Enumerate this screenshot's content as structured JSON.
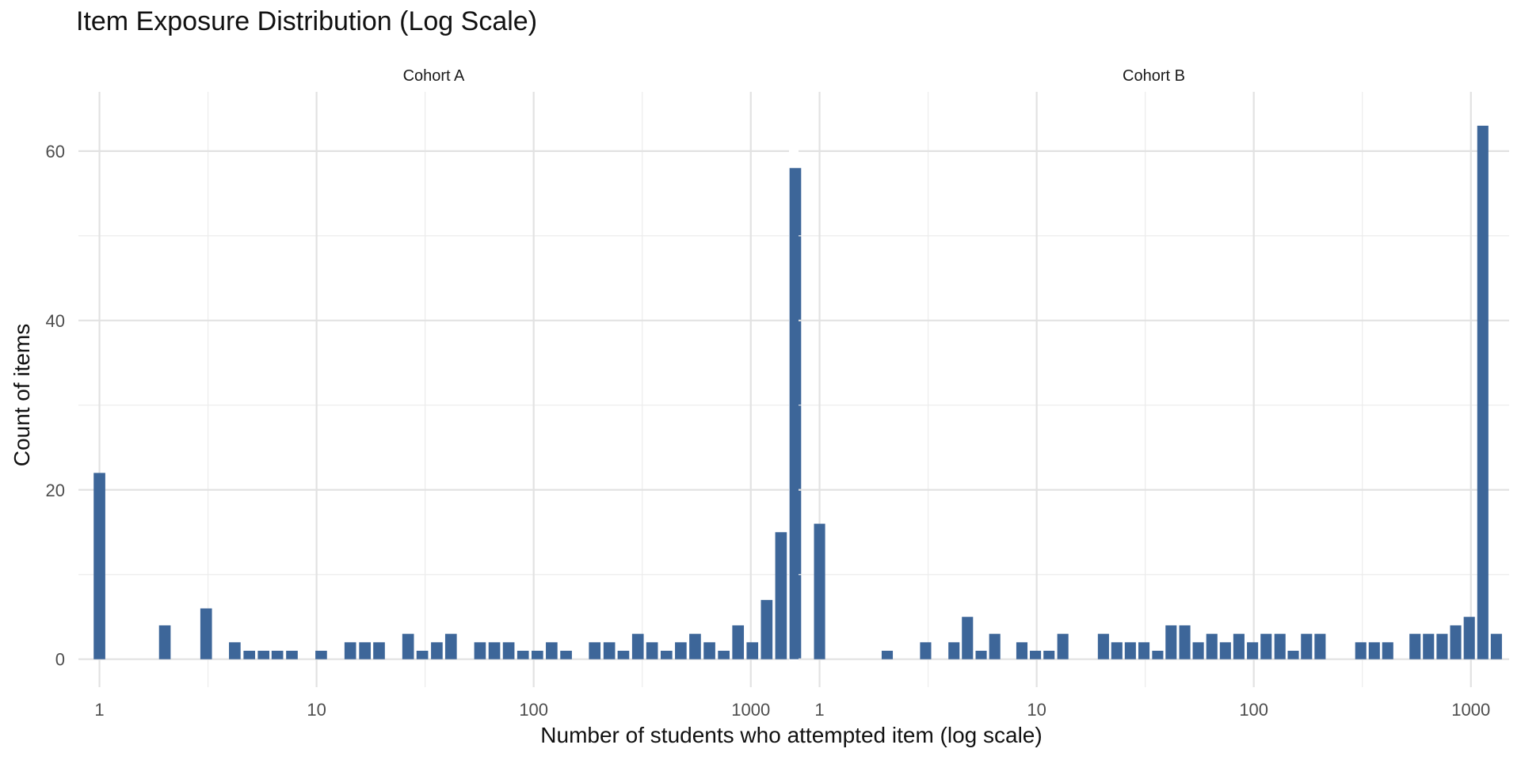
{
  "chart_data": {
    "type": "bar",
    "title": "Item Exposure Distribution (Log Scale)",
    "xlabel": "Number of students who attempted item (log scale)",
    "ylabel": "Count of items",
    "x_scale": "log10",
    "xlim": [
      0.8,
      1500
    ],
    "ylim": [
      -3.3,
      67
    ],
    "x_ticks": [
      1,
      10,
      100,
      1000
    ],
    "x_tick_labels": [
      "1",
      "10",
      "100",
      "1000"
    ],
    "y_ticks": [
      0,
      20,
      40,
      60
    ],
    "y_tick_labels": [
      "0",
      "20",
      "40",
      "60"
    ],
    "grid": true,
    "bar_color": "#3d6699",
    "facets": [
      {
        "name": "Cohort A",
        "bins": [
          {
            "x": 1,
            "count": 22
          },
          {
            "x": 2,
            "count": 4
          },
          {
            "x": 3.1,
            "count": 6
          },
          {
            "x": 4.2,
            "count": 2
          },
          {
            "x": 4.9,
            "count": 1
          },
          {
            "x": 5.7,
            "count": 1
          },
          {
            "x": 6.6,
            "count": 1
          },
          {
            "x": 7.7,
            "count": 1
          },
          {
            "x": 10.5,
            "count": 1
          },
          {
            "x": 14.3,
            "count": 2
          },
          {
            "x": 16.7,
            "count": 2
          },
          {
            "x": 19.4,
            "count": 2
          },
          {
            "x": 26.4,
            "count": 3
          },
          {
            "x": 30.7,
            "count": 1
          },
          {
            "x": 35.8,
            "count": 2
          },
          {
            "x": 41.6,
            "count": 3
          },
          {
            "x": 56.6,
            "count": 2
          },
          {
            "x": 65.9,
            "count": 2
          },
          {
            "x": 76.7,
            "count": 2
          },
          {
            "x": 89.3,
            "count": 1
          },
          {
            "x": 104,
            "count": 1
          },
          {
            "x": 121,
            "count": 2
          },
          {
            "x": 141,
            "count": 1
          },
          {
            "x": 191,
            "count": 2
          },
          {
            "x": 223,
            "count": 2
          },
          {
            "x": 259,
            "count": 1
          },
          {
            "x": 302,
            "count": 3
          },
          {
            "x": 351,
            "count": 2
          },
          {
            "x": 409,
            "count": 1
          },
          {
            "x": 476,
            "count": 2
          },
          {
            "x": 554,
            "count": 3
          },
          {
            "x": 645,
            "count": 2
          },
          {
            "x": 751,
            "count": 1
          },
          {
            "x": 874,
            "count": 4
          },
          {
            "x": 1017,
            "count": 2
          },
          {
            "x": 1184,
            "count": 7
          },
          {
            "x": 1378,
            "count": 15
          },
          {
            "x": 1604,
            "count": 58
          }
        ]
      },
      {
        "name": "Cohort B",
        "bins": [
          {
            "x": 1,
            "count": 16
          },
          {
            "x": 2.05,
            "count": 1
          },
          {
            "x": 3.08,
            "count": 2
          },
          {
            "x": 4.16,
            "count": 2
          },
          {
            "x": 4.8,
            "count": 5
          },
          {
            "x": 5.55,
            "count": 1
          },
          {
            "x": 6.41,
            "count": 3
          },
          {
            "x": 8.55,
            "count": 2
          },
          {
            "x": 9.87,
            "count": 1
          },
          {
            "x": 11.4,
            "count": 1
          },
          {
            "x": 13.2,
            "count": 3
          },
          {
            "x": 20.3,
            "count": 3
          },
          {
            "x": 23.4,
            "count": 2
          },
          {
            "x": 27,
            "count": 2
          },
          {
            "x": 31.2,
            "count": 2
          },
          {
            "x": 36.1,
            "count": 1
          },
          {
            "x": 41.6,
            "count": 4
          },
          {
            "x": 48.1,
            "count": 4
          },
          {
            "x": 55.5,
            "count": 2
          },
          {
            "x": 64.1,
            "count": 3
          },
          {
            "x": 74,
            "count": 2
          },
          {
            "x": 85.4,
            "count": 3
          },
          {
            "x": 98.7,
            "count": 2
          },
          {
            "x": 114,
            "count": 3
          },
          {
            "x": 132,
            "count": 3
          },
          {
            "x": 152,
            "count": 1
          },
          {
            "x": 175,
            "count": 3
          },
          {
            "x": 202,
            "count": 3
          },
          {
            "x": 311,
            "count": 2
          },
          {
            "x": 359,
            "count": 2
          },
          {
            "x": 414,
            "count": 2
          },
          {
            "x": 553,
            "count": 3
          },
          {
            "x": 638,
            "count": 3
          },
          {
            "x": 737,
            "count": 3
          },
          {
            "x": 851,
            "count": 4
          },
          {
            "x": 983,
            "count": 5
          },
          {
            "x": 1135,
            "count": 63
          },
          {
            "x": 1310,
            "count": 3
          }
        ]
      }
    ]
  }
}
